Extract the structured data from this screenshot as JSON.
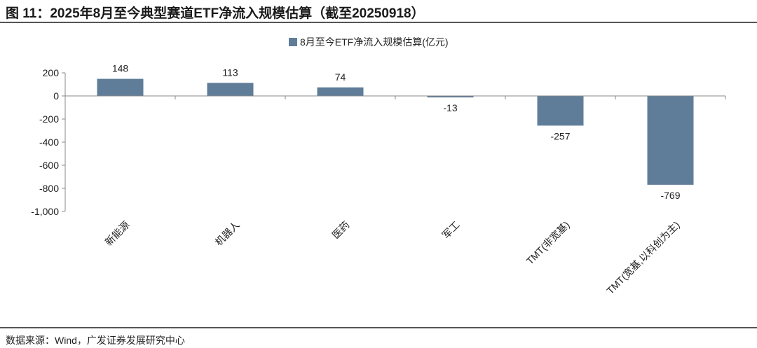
{
  "title": "图 11：2025年8月至今典型赛道ETF净流入规模估算（截至20250918）",
  "source": "数据来源：Wind，广发证券发展研究中心",
  "chart_data": {
    "type": "bar",
    "categories": [
      "新能源",
      "机器人",
      "医药",
      "军工",
      "TMT(非宽基)",
      "TMT(宽基,以科创为主)"
    ],
    "series": [
      {
        "name": "8月至今ETF净流入规模估算(亿元)",
        "values": [
          148,
          113,
          74,
          -13,
          -257,
          -769
        ],
        "color": "#5f7d99"
      }
    ],
    "ylim": [
      -1000,
      200
    ],
    "yticks": [
      200,
      0,
      -200,
      -400,
      -600,
      -800,
      -1000
    ],
    "ytick_labels": [
      "200",
      "0",
      "-200",
      "-400",
      "-600",
      "-800",
      "-1,000"
    ],
    "data_labels": [
      "148",
      "113",
      "74",
      "-13",
      "-257",
      "-769"
    ],
    "legend": "top-right",
    "grid": false
  }
}
